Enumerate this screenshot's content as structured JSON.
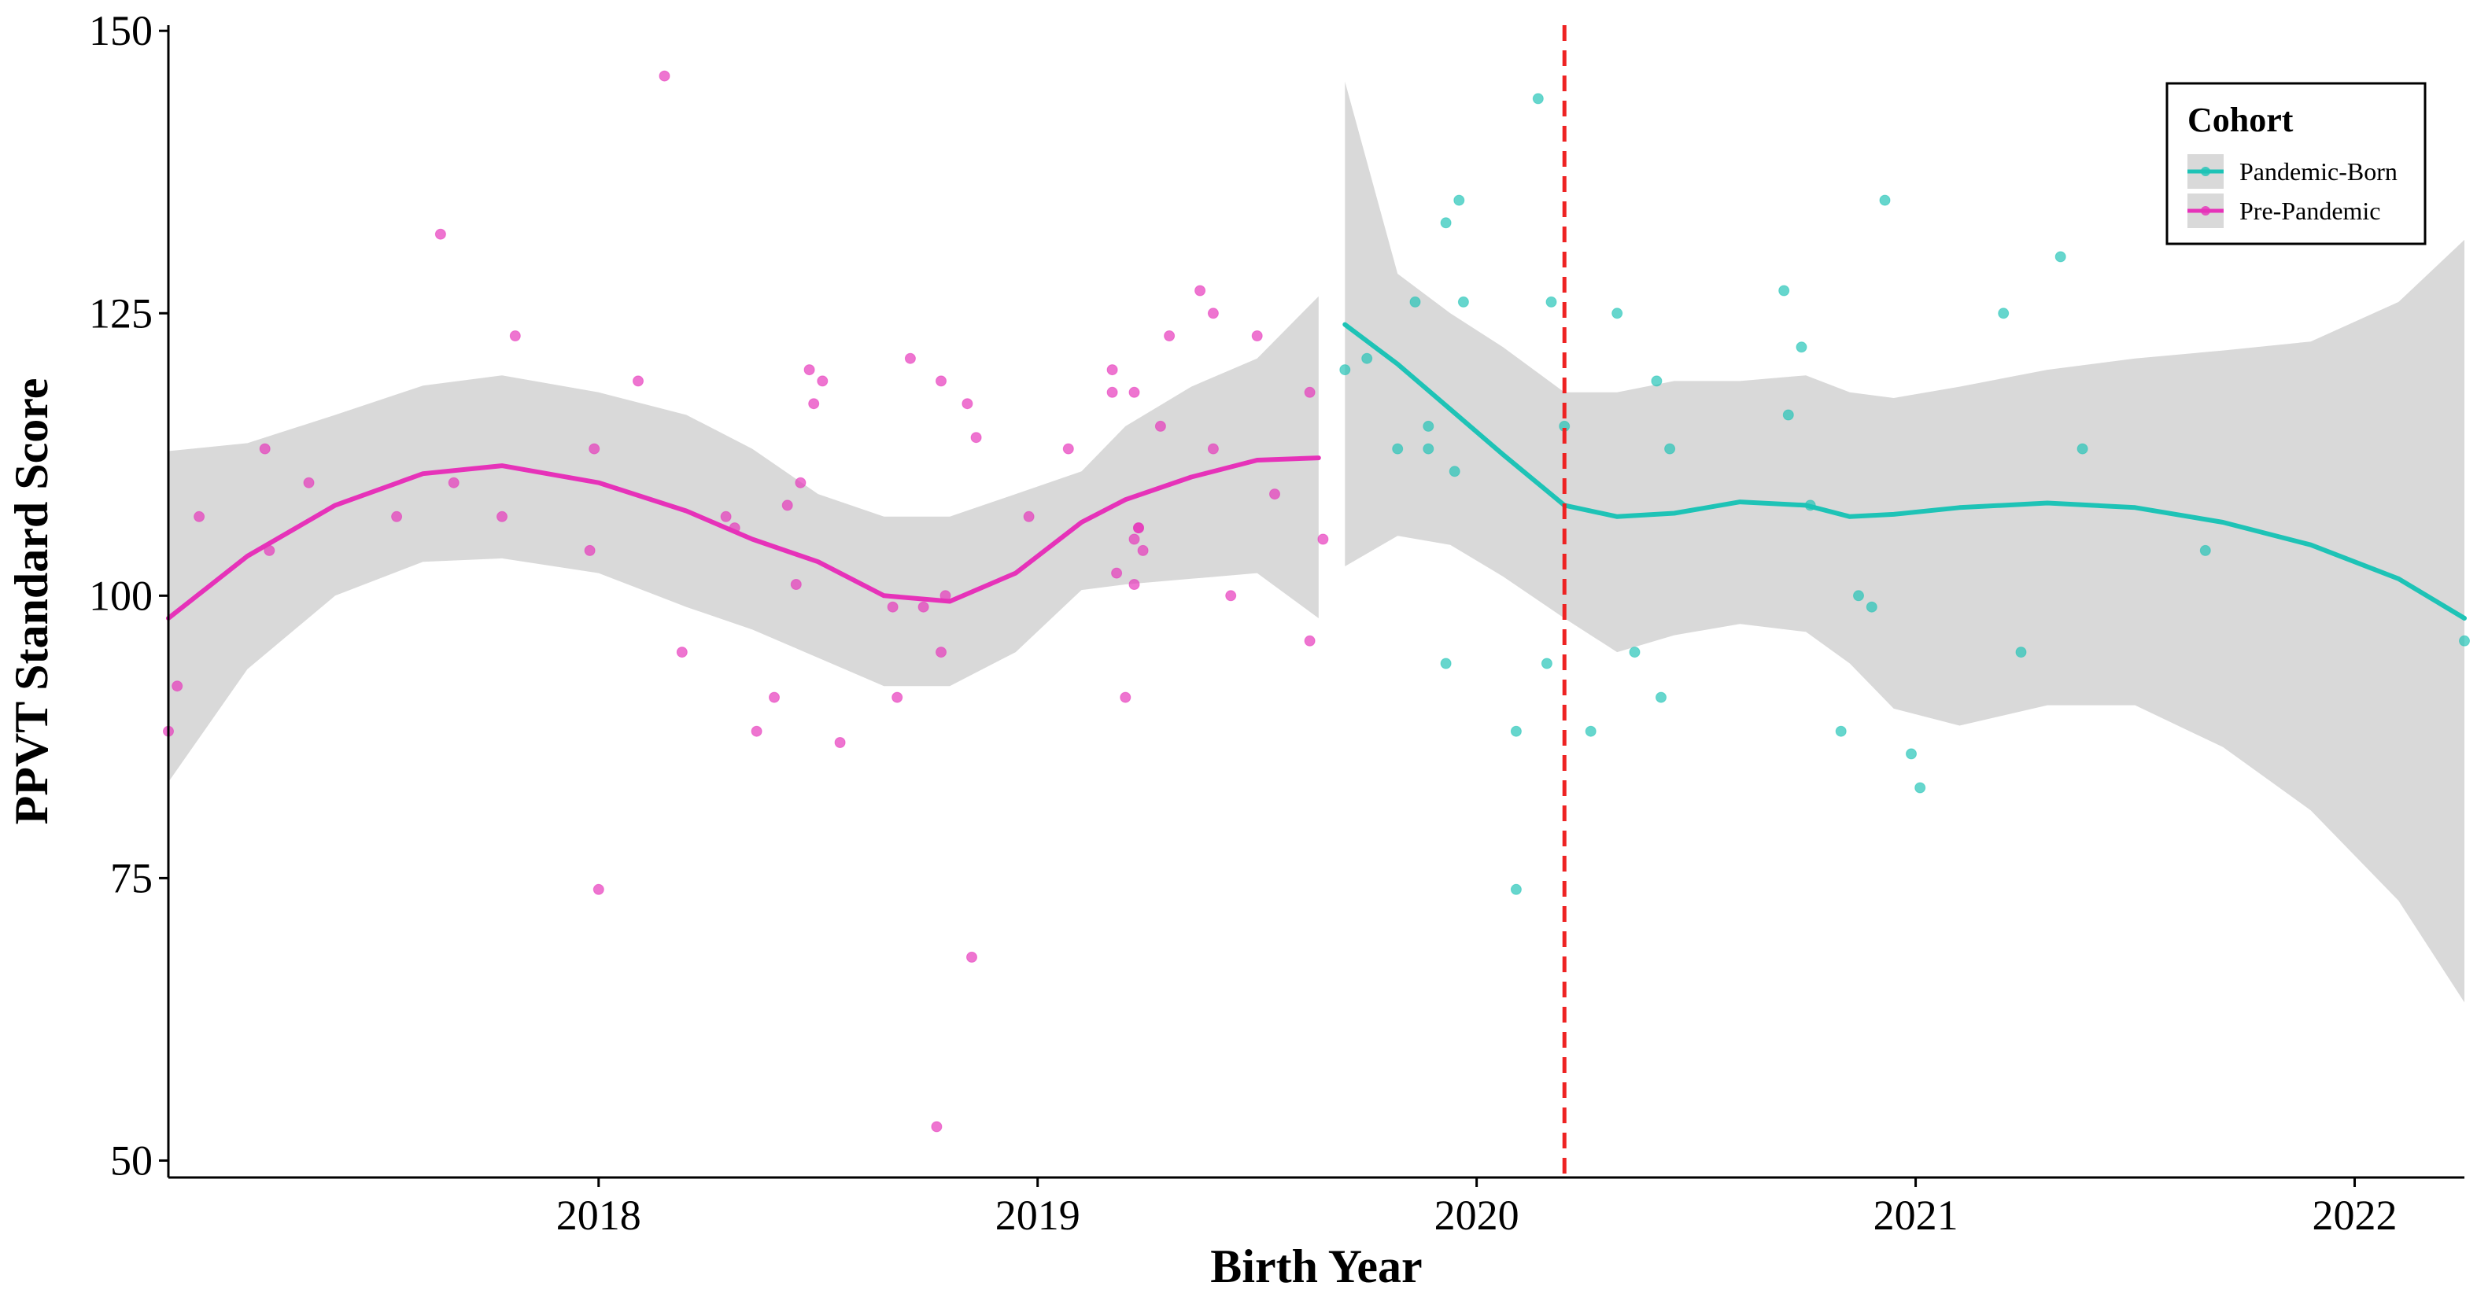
{
  "chart_data": {
    "type": "scatter",
    "title": "",
    "xlabel": "Birth Year",
    "ylabel": "PPVT Standard Score",
    "xlim": [
      2017.02,
      2022.25
    ],
    "ylim": [
      48.5,
      150.5
    ],
    "x_ticks": [
      2018,
      2019,
      2020,
      2021,
      2022
    ],
    "x_tick_labels": [
      "2018",
      "2019",
      "2020",
      "2021",
      "2022"
    ],
    "y_ticks": [
      50,
      75,
      100,
      125,
      150
    ],
    "y_tick_labels": [
      "50",
      "75",
      "100",
      "125",
      "150"
    ],
    "grid": false,
    "legend": {
      "title": "Cohort",
      "position": "top-right"
    },
    "reference_line": {
      "x": 2020.2,
      "color": "#ee2222",
      "style": "dashed"
    },
    "series": [
      {
        "name": "Pandemic-Born",
        "color": "#1ec3b6",
        "points": [
          [
            2019.7,
            120
          ],
          [
            2019.75,
            121
          ],
          [
            2019.82,
            113
          ],
          [
            2019.86,
            126
          ],
          [
            2019.89,
            115
          ],
          [
            2019.89,
            113
          ],
          [
            2019.93,
            94
          ],
          [
            2019.93,
            133
          ],
          [
            2019.95,
            111
          ],
          [
            2019.96,
            135
          ],
          [
            2019.97,
            126
          ],
          [
            2020.09,
            88
          ],
          [
            2020.09,
            74
          ],
          [
            2020.14,
            144
          ],
          [
            2020.16,
            94
          ],
          [
            2020.17,
            126
          ],
          [
            2020.2,
            115
          ],
          [
            2020.26,
            88
          ],
          [
            2020.32,
            125
          ],
          [
            2020.36,
            95
          ],
          [
            2020.41,
            119
          ],
          [
            2020.42,
            91
          ],
          [
            2020.44,
            113
          ],
          [
            2020.7,
            127
          ],
          [
            2020.71,
            116
          ],
          [
            2020.74,
            122
          ],
          [
            2020.76,
            108
          ],
          [
            2020.83,
            88
          ],
          [
            2020.87,
            100
          ],
          [
            2020.9,
            99
          ],
          [
            2020.93,
            135
          ],
          [
            2020.99,
            86
          ],
          [
            2021.01,
            83
          ],
          [
            2021.2,
            125
          ],
          [
            2021.24,
            95
          ],
          [
            2021.33,
            130
          ],
          [
            2021.38,
            113
          ],
          [
            2021.66,
            104
          ],
          [
            2022.25,
            96
          ]
        ],
        "smooth": {
          "x": [
            2019.7,
            2019.82,
            2019.94,
            2020.06,
            2020.2,
            2020.32,
            2020.45,
            2020.6,
            2020.75,
            2020.85,
            2020.95,
            2021.1,
            2021.3,
            2021.5,
            2021.7,
            2021.9,
            2022.1,
            2022.25
          ],
          "y": [
            124,
            120.5,
            116.5,
            112.5,
            108,
            107,
            107.3,
            108.3,
            108,
            107,
            107.2,
            107.8,
            108.2,
            107.8,
            106.5,
            104.5,
            101.5,
            98
          ],
          "lower": [
            102.6,
            105.3,
            104.5,
            101.7,
            98,
            95,
            96.5,
            97.5,
            96.8,
            94,
            90,
            88.5,
            90.3,
            90.3,
            86.6,
            81,
            73,
            64
          ],
          "upper": [
            145.5,
            128.5,
            125,
            122,
            118,
            118,
            119,
            119,
            119.5,
            118,
            117.5,
            118.5,
            120,
            121,
            121.7,
            122.5,
            126,
            131.5
          ]
        }
      },
      {
        "name": "Pre-Pandemic",
        "color": "#e632b9",
        "points": [
          [
            2017.02,
            88
          ],
          [
            2017.04,
            92
          ],
          [
            2017.09,
            107
          ],
          [
            2017.24,
            113
          ],
          [
            2017.25,
            104
          ],
          [
            2017.34,
            110
          ],
          [
            2017.54,
            107
          ],
          [
            2017.64,
            132
          ],
          [
            2017.67,
            110
          ],
          [
            2017.78,
            107
          ],
          [
            2017.81,
            123
          ],
          [
            2017.98,
            104
          ],
          [
            2017.99,
            113
          ],
          [
            2018.0,
            74
          ],
          [
            2018.09,
            119
          ],
          [
            2018.15,
            146
          ],
          [
            2018.19,
            95
          ],
          [
            2018.29,
            107
          ],
          [
            2018.31,
            106
          ],
          [
            2018.36,
            88
          ],
          [
            2018.4,
            91
          ],
          [
            2018.43,
            108
          ],
          [
            2018.45,
            101
          ],
          [
            2018.46,
            110
          ],
          [
            2018.48,
            120
          ],
          [
            2018.49,
            117
          ],
          [
            2018.51,
            119
          ],
          [
            2018.55,
            87
          ],
          [
            2018.67,
            99
          ],
          [
            2018.68,
            91
          ],
          [
            2018.71,
            121
          ],
          [
            2018.74,
            99
          ],
          [
            2018.77,
            53
          ],
          [
            2018.78,
            95
          ],
          [
            2018.78,
            119
          ],
          [
            2018.79,
            100
          ],
          [
            2018.84,
            117
          ],
          [
            2018.85,
            68
          ],
          [
            2018.86,
            114
          ],
          [
            2018.98,
            107
          ],
          [
            2019.07,
            113
          ],
          [
            2019.17,
            120
          ],
          [
            2019.17,
            118
          ],
          [
            2019.18,
            102
          ],
          [
            2019.2,
            91
          ],
          [
            2019.22,
            105
          ],
          [
            2019.22,
            101
          ],
          [
            2019.22,
            118
          ],
          [
            2019.23,
            106
          ],
          [
            2019.23,
            106
          ],
          [
            2019.24,
            104
          ],
          [
            2019.28,
            115
          ],
          [
            2019.3,
            123
          ],
          [
            2019.37,
            127
          ],
          [
            2019.4,
            125
          ],
          [
            2019.4,
            113
          ],
          [
            2019.44,
            100
          ],
          [
            2019.5,
            123
          ],
          [
            2019.54,
            109
          ],
          [
            2019.62,
            118
          ],
          [
            2019.62,
            96
          ],
          [
            2019.65,
            105
          ]
        ],
        "smooth": {
          "x": [
            2017.02,
            2017.2,
            2017.4,
            2017.6,
            2017.78,
            2018.0,
            2018.2,
            2018.35,
            2018.5,
            2018.65,
            2018.8,
            2018.95,
            2019.1,
            2019.2,
            2019.35,
            2019.5,
            2019.64
          ],
          "y": [
            98,
            103.5,
            108,
            110.8,
            111.5,
            110,
            107.5,
            105,
            103,
            100,
            99.5,
            102,
            106.5,
            108.5,
            110.5,
            112,
            112.2
          ],
          "lower": [
            83.5,
            93.5,
            100,
            103,
            103.3,
            102,
            99,
            97,
            94.5,
            92,
            92,
            95,
            100.5,
            101,
            101.5,
            102,
            98
          ],
          "upper": [
            112.8,
            113.5,
            116,
            118.6,
            119.5,
            118,
            116,
            113,
            109,
            107,
            107,
            109,
            111,
            115,
            118.5,
            121,
            126.5
          ]
        }
      }
    ]
  }
}
